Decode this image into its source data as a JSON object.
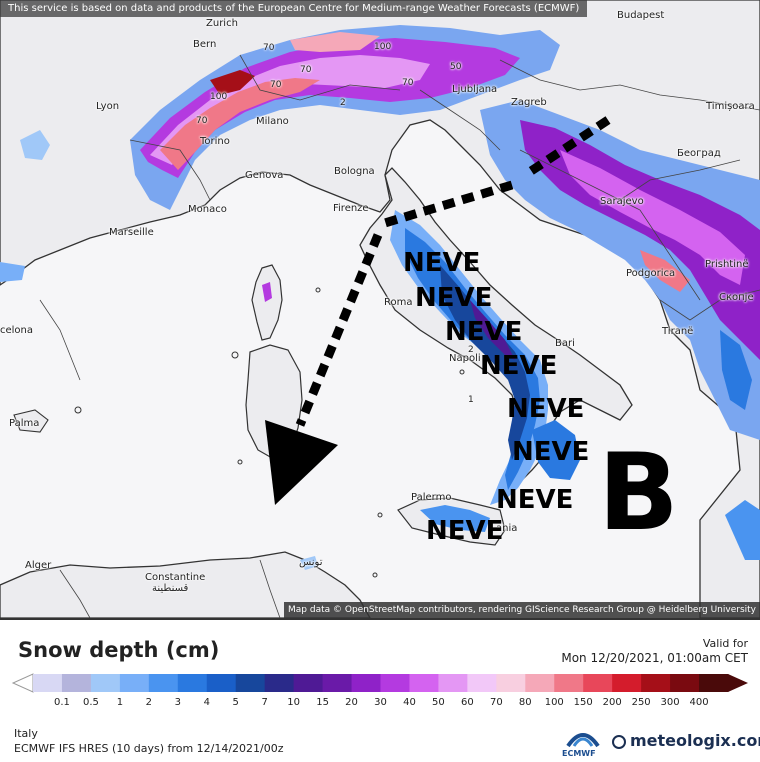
{
  "attribution_top": "This service is based on data and products of the European Centre for Medium-range Weather Forecasts (ECMWF)",
  "attribution_bottom": "Map data © OpenStreetMap contributors, rendering GIScience Research Group @ Heidelberg University",
  "cities": {
    "budapest": "Budapest",
    "zurich": "Zurich",
    "bern": "Bern",
    "lyon": "Lyon",
    "milano": "Milano",
    "torino": "Torino",
    "genova": "Genova",
    "monaco": "Monaco",
    "marseille": "Marseille",
    "bologna": "Bologna",
    "firenze": "Firenze",
    "ljubljana": "Ljubljana",
    "zagreb": "Zagreb",
    "timisoara": "Timișoara",
    "beograd": "Београд",
    "sarajevo": "Sarajevo",
    "podgorica": "Podgorica",
    "prishtine": "Prishtinë",
    "skopje": "Скопје",
    "tirane": "Tiranë",
    "roma": "Roma",
    "napoli": "Napoli",
    "bari": "Bari",
    "barcelona": "celona",
    "palma": "Palma",
    "palermo": "Palermo",
    "catania": "ania",
    "alger": "Alger",
    "constantine": "Constantine",
    "constantine_ar": "قسنطينة",
    "tunis_ar": "تونس"
  },
  "contour_labels": [
    "70",
    "100",
    "70",
    "100",
    "70",
    "2",
    "70",
    "50",
    "70",
    "1",
    "2"
  ],
  "annotations": {
    "neve": [
      "NEVE",
      "NEVE",
      "NEVE",
      "NEVE",
      "NEVE",
      "NEVE",
      "NEVE",
      "NEVE"
    ],
    "pressure_symbol": "B"
  },
  "legend": {
    "title": "Snow depth (cm)",
    "valid_label": "Valid for",
    "valid_date": "Mon 12/20/2021, 01:00am CET",
    "region": "Italy",
    "model_info": "ECMWF IFS HRES (10 days) from 12/14/2021/00z",
    "ecmwf_logo_text": "ECMWF",
    "brand": "meteologix.com",
    "ticks": [
      "0.1",
      "0.5",
      "1",
      "2",
      "3",
      "4",
      "5",
      "7",
      "10",
      "15",
      "20",
      "30",
      "40",
      "50",
      "60",
      "70",
      "80",
      "100",
      "150",
      "200",
      "250",
      "300",
      "400"
    ],
    "colors": [
      "#d8d8f4",
      "#b4b4dc",
      "#a0c8f8",
      "#78aff8",
      "#4a94f0",
      "#2a79e0",
      "#1a5fc8",
      "#17479c",
      "#2a2a8a",
      "#4f1a95",
      "#6a1aa8",
      "#8f22c8",
      "#b43ae0",
      "#d463f0",
      "#e497f4",
      "#f2c8f8",
      "#f8cfe0",
      "#f5a8b8",
      "#f07888",
      "#e8475a",
      "#d41c2c",
      "#a50f18",
      "#7a0a10",
      "#4a0a0a"
    ]
  }
}
